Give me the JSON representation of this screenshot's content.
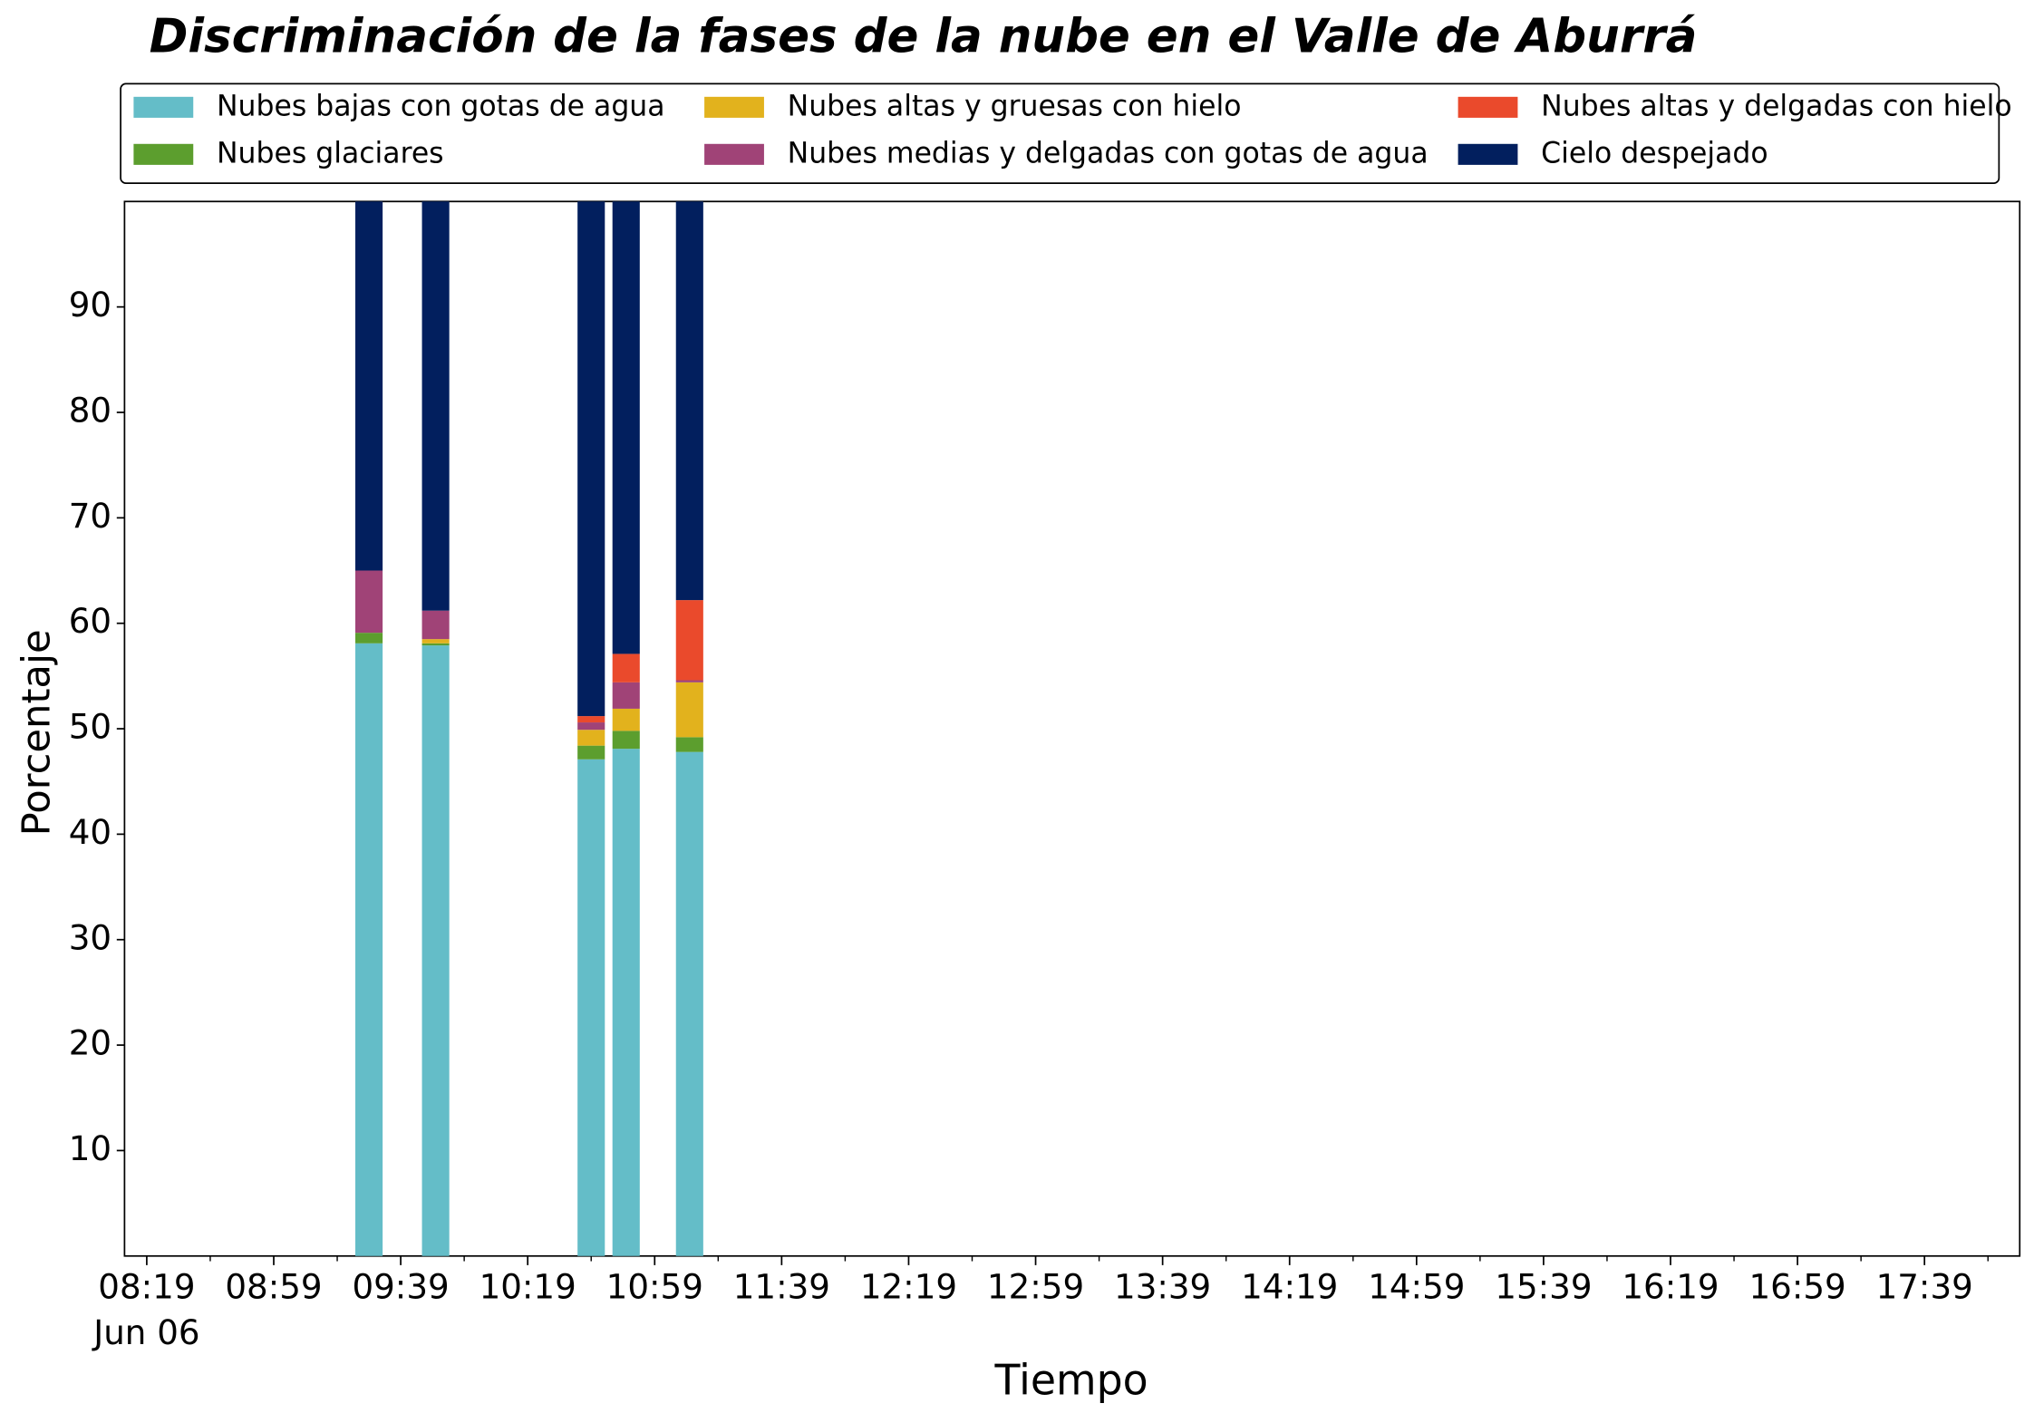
{
  "chart_data": {
    "type": "bar",
    "stacked": true,
    "title": "Discriminación de la fases de la nube en el Valle de Aburrá",
    "x_label": "Tiempo",
    "y_label": "Porcentaje",
    "x": [
      "09:29",
      "09:50",
      "10:39",
      "10:50",
      "11:10"
    ],
    "x_date_label": "Jun 06",
    "xlim": [
      "08:12",
      "18:09"
    ],
    "xticks": [
      "08:19",
      "08:59",
      "09:39",
      "10:19",
      "10:59",
      "11:39",
      "12:19",
      "12:59",
      "13:39",
      "14:19",
      "14:59",
      "15:39",
      "16:19",
      "16:59",
      "17:39"
    ],
    "ylim": [
      0,
      100
    ],
    "yticks": [
      10,
      20,
      30,
      40,
      50,
      60,
      70,
      80,
      90
    ],
    "grid": false,
    "legend": "top",
    "series": [
      {
        "name": "Nubes bajas con gotas de agua",
        "color": "#64bdc8",
        "values": [
          58.1,
          57.9,
          47.1,
          48.1,
          47.8
        ]
      },
      {
        "name": "Nubes glaciares",
        "color": "#5c9e2e",
        "values": [
          1.0,
          0.2,
          1.3,
          1.7,
          1.4
        ]
      },
      {
        "name": "Nubes altas y gruesas con hielo",
        "color": "#e2b21d",
        "values": [
          0,
          0.4,
          1.5,
          2.1,
          5.2
        ]
      },
      {
        "name": "Nubes medias y delgadas con gotas de agua",
        "color": "#a04377",
        "values": [
          5.9,
          2.7,
          0.7,
          2.5,
          0.2
        ]
      },
      {
        "name": "Nubes altas y delgadas con hielo",
        "color": "#ea4a2c",
        "values": [
          0,
          0,
          0.6,
          2.7,
          7.6
        ]
      },
      {
        "name": "Cielo despejado",
        "color": "#021f5e",
        "values": [
          35.0,
          38.8,
          48.8,
          42.9,
          37.8
        ]
      }
    ]
  }
}
